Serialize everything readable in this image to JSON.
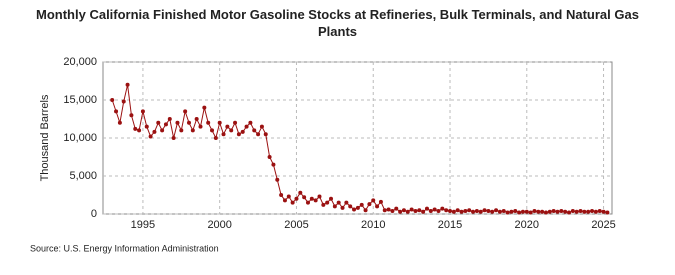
{
  "chart_data": {
    "type": "line",
    "title": "Monthly California Finished Motor Gasoline Stocks at Refineries, Bulk Terminals, and Natural Gas Plants",
    "y_label": "Thousand Barrels",
    "source": "Source: U.S. Energy Information Administration",
    "color": "#9b1111",
    "grid": true,
    "xlim": [
      1992.4,
      2025.55
    ],
    "xticks": [
      1995,
      2000,
      2005,
      2010,
      2015,
      2020,
      2025
    ],
    "ylim": [
      0,
      20000
    ],
    "yticks": [
      0,
      {
        "value": 5000,
        "label": "5,000"
      },
      {
        "value": 10000,
        "label": "10,000"
      },
      {
        "value": 15000,
        "label": "15,000"
      },
      {
        "value": 20000,
        "label": "20,000"
      }
    ],
    "x": [
      1993,
      1993.25,
      1993.5,
      1993.75,
      1994,
      1994.25,
      1994.5,
      1994.75,
      1995,
      1995.25,
      1995.5,
      1995.75,
      1996,
      1996.25,
      1996.5,
      1996.75,
      1997,
      1997.25,
      1997.5,
      1997.75,
      1998,
      1998.25,
      1998.5,
      1998.75,
      1999,
      1999.25,
      1999.5,
      1999.75,
      2000,
      2000.25,
      2000.5,
      2000.75,
      2001,
      2001.25,
      2001.5,
      2001.75,
      2002,
      2002.25,
      2002.5,
      2002.75,
      2003,
      2003.25,
      2003.5,
      2003.75,
      2004,
      2004.25,
      2004.5,
      2004.75,
      2005,
      2005.25,
      2005.5,
      2005.75,
      2006,
      2006.25,
      2006.5,
      2006.75,
      2007,
      2007.25,
      2007.5,
      2007.75,
      2008,
      2008.25,
      2008.5,
      2008.75,
      2009,
      2009.25,
      2009.5,
      2009.75,
      2010,
      2010.25,
      2010.5,
      2010.75,
      2011,
      2011.25,
      2011.5,
      2011.75,
      2012,
      2012.25,
      2012.5,
      2012.75,
      2013,
      2013.25,
      2013.5,
      2013.75,
      2014,
      2014.25,
      2014.5,
      2014.75,
      2015,
      2015.25,
      2015.5,
      2015.75,
      2016,
      2016.25,
      2016.5,
      2016.75,
      2017,
      2017.25,
      2017.5,
      2017.75,
      2018,
      2018.25,
      2018.5,
      2018.75,
      2019,
      2019.25,
      2019.5,
      2019.75,
      2020,
      2020.25,
      2020.5,
      2020.75,
      2021,
      2021.25,
      2021.5,
      2021.75,
      2022,
      2022.25,
      2022.5,
      2022.75,
      2023,
      2023.25,
      2023.5,
      2023.75,
      2024,
      2024.25,
      2024.5,
      2024.75,
      2025,
      2025.25
    ],
    "values": [
      15000,
      13500,
      12000,
      14800,
      17000,
      13000,
      11200,
      11000,
      13500,
      11500,
      10200,
      10800,
      12000,
      11000,
      11800,
      12500,
      10000,
      12000,
      11000,
      13500,
      12000,
      11000,
      12500,
      11500,
      14000,
      12000,
      11000,
      10000,
      12000,
      10500,
      11500,
      11000,
      12000,
      10500,
      10800,
      11500,
      12000,
      11000,
      10500,
      11500,
      10500,
      7500,
      6500,
      4500,
      2500,
      1800,
      2300,
      1500,
      2000,
      2800,
      2200,
      1500,
      2000,
      1800,
      2300,
      1200,
      1500,
      2000,
      1000,
      1500,
      800,
      1500,
      1000,
      600,
      800,
      1200,
      500,
      1300,
      1800,
      1000,
      1600,
      500,
      600,
      400,
      700,
      300,
      500,
      300,
      600,
      400,
      500,
      300,
      700,
      400,
      600,
      400,
      700,
      500,
      400,
      300,
      500,
      300,
      400,
      500,
      300,
      400,
      300,
      500,
      400,
      300,
      500,
      300,
      400,
      200,
      300,
      400,
      200,
      300,
      300,
      200,
      400,
      300,
      300,
      200,
      300,
      400,
      300,
      400,
      300,
      200,
      400,
      300,
      400,
      300,
      300,
      400,
      300,
      400,
      300,
      200
    ]
  }
}
